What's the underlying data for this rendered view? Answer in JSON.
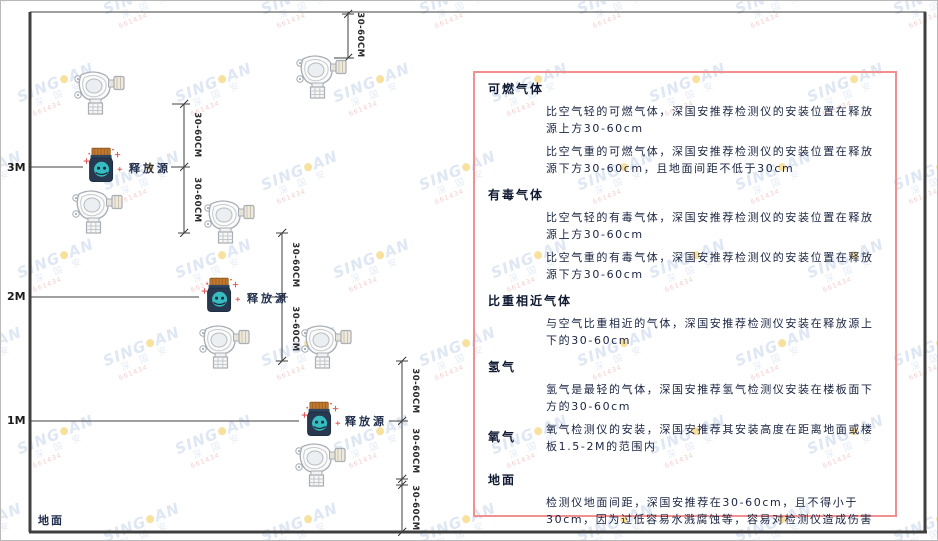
{
  "diagram": {
    "dimension_label": "30-60CM",
    "release_source_label": "释放源",
    "ground_label": "地面",
    "scale": {
      "m3": "3M",
      "m2": "2M",
      "m1": "1M"
    },
    "icons": {
      "gas_detector": "gas-detector-icon",
      "release_source": "release-source-jar-icon"
    },
    "colors": {
      "panel_border": "#f19090",
      "line": "#4a4a4a",
      "jar_body": "#28394f",
      "jar_cap": "#c27a2e",
      "jar_face": "#37bcc2",
      "sparkle": "#e25c5c",
      "text": "#1a2442"
    }
  },
  "watermark": {
    "brand_left": "SING",
    "brand_right": "AN",
    "cn": "深 国 安",
    "code": "661434"
  },
  "panel": {
    "sections": [
      {
        "heading": "可燃气体",
        "paragraphs": [
          "比空气轻的可燃气体，深国安推荐检测仪的安装位置在释放源上方30-60cm",
          "比空气重的可燃气体，深国安推荐检测仪的安装位置在释放源下方30-60cm，且地面间距不低于30cm"
        ]
      },
      {
        "heading": "有毒气体",
        "paragraphs": [
          "比空气轻的有毒气体，深国安推荐检测仪的安装位置在释放源上方30-60cm",
          "比空气重的有毒气体，深国安推荐检测仪的安装位置在释放源下方30-60cm"
        ]
      },
      {
        "heading": "比重相近气体",
        "paragraphs": [
          "与空气比重相近的气体，深国安推荐检测仪安装在释放源上下的30-60cm"
        ]
      },
      {
        "heading": "氢气",
        "paragraphs": [
          "氢气是最轻的气体，深国安推荐氢气检测仪安装在楼板面下方的30-60cm"
        ]
      },
      {
        "heading": "氧气",
        "paragraphs": [
          "氧气检测仪的安装，深国安推荐其安装高度在距离地面或楼板1.5-2M的范围内"
        ]
      },
      {
        "heading": "地面",
        "paragraphs": [
          "检测仪地面间距，深国安推荐在30-60cm，且不得小于30cm，因为过低容易水溅腐蚀等，容易对检测仪造成伤害"
        ]
      }
    ]
  }
}
